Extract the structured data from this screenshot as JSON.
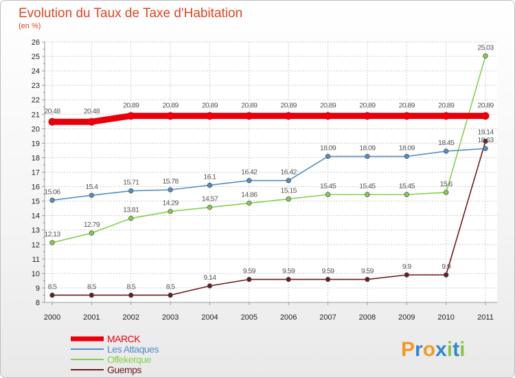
{
  "chart_data": {
    "type": "line",
    "title": "Evolution du Taux de Taxe d'Habitation",
    "subtitle": "(en %)",
    "x": [
      "2000",
      "2001",
      "2002",
      "2003",
      "2004",
      "2005",
      "2006",
      "2007",
      "2008",
      "2009",
      "2010",
      "2011"
    ],
    "ylim": [
      8,
      26
    ],
    "yticks": [
      8,
      9,
      10,
      11,
      12,
      13,
      14,
      15,
      16,
      17,
      18,
      19,
      20,
      21,
      22,
      23,
      24,
      25,
      26
    ],
    "grid": true,
    "legend_position": "bottom-left",
    "series": [
      {
        "name": "MARCK",
        "color": "#e8000b",
        "values": [
          20.48,
          20.48,
          20.89,
          20.89,
          20.89,
          20.89,
          20.89,
          20.89,
          20.89,
          20.89,
          20.89,
          20.89
        ],
        "labels": [
          "20.48",
          "20.48",
          "20.89",
          "20.89",
          "20.89",
          "20.89",
          "20.89",
          "20.89",
          "20.89",
          "20.89",
          "20.89",
          "20.89"
        ]
      },
      {
        "name": "Les Attaques",
        "color": "#4f8fc8",
        "values": [
          15.06,
          15.4,
          15.71,
          15.78,
          16.1,
          16.42,
          16.42,
          18.09,
          18.09,
          18.09,
          18.45,
          18.63
        ],
        "labels": [
          "15.06",
          "15.4",
          "15.71",
          "15.78",
          "16.1",
          "16.42",
          "16.42",
          "18.09",
          "18.09",
          "18.09",
          "18.45",
          "18.63"
        ]
      },
      {
        "name": "Offekerque",
        "color": "#82d04a",
        "values": [
          12.13,
          12.79,
          13.81,
          14.29,
          14.57,
          14.86,
          15.15,
          15.45,
          15.45,
          15.45,
          15.6,
          25.03
        ],
        "labels": [
          "12.13",
          "12.79",
          "13.81",
          "14.29",
          "14.57",
          "14.86",
          "15.15",
          "15.45",
          "15.45",
          "15.45",
          "15.6",
          "25.03"
        ]
      },
      {
        "name": "Guemps",
        "color": "#6b1a1a",
        "values": [
          8.5,
          8.5,
          8.5,
          8.5,
          9.14,
          9.59,
          9.59,
          9.59,
          9.59,
          9.9,
          9.9,
          19.14
        ],
        "labels": [
          "8.5",
          "8.5",
          "8.5",
          "8.5",
          "9.14",
          "9.59",
          "9.59",
          "9.59",
          "9.59",
          "9.9",
          "9.9",
          "19.14"
        ]
      }
    ]
  },
  "logo": {
    "text": "Proxiti",
    "letters": [
      "P",
      "r",
      "o",
      "x",
      "i",
      "t",
      "i"
    ],
    "colors": [
      "#f39a1e",
      "#2e86d6",
      "#f39a1e",
      "#2e86d6",
      "#8cc63f",
      "#2e86d6",
      "#8cc63f"
    ]
  }
}
